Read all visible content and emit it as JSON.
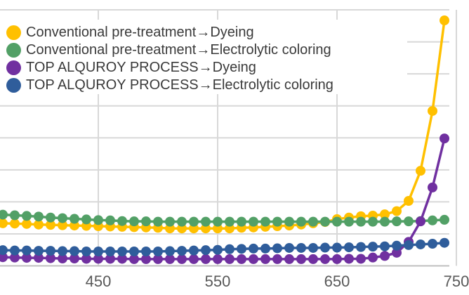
{
  "chart_data": {
    "type": "line",
    "title": "",
    "xlabel": "",
    "ylabel": "",
    "legend_position": "top-left",
    "grid": true,
    "x": [
      370,
      380,
      390,
      400,
      410,
      420,
      430,
      440,
      450,
      460,
      470,
      480,
      490,
      500,
      510,
      520,
      530,
      540,
      550,
      560,
      570,
      580,
      590,
      600,
      610,
      620,
      630,
      640,
      650,
      660,
      670,
      680,
      690,
      700,
      710,
      720,
      730,
      740
    ],
    "x_ticks": {
      "labels": [
        "450",
        "550",
        "650",
        "750"
      ],
      "values": [
        450,
        550,
        650,
        750
      ]
    },
    "y_axis": {
      "visible_tick_labels": [],
      "gridline_rows_visible": 8
    },
    "series": [
      {
        "name": "Conventional pre-treatment→Dyeing",
        "color": "#FFC000",
        "values_gridline_units": [
          1.33,
          1.32,
          1.31,
          1.29,
          1.28,
          1.27,
          1.26,
          1.25,
          1.24,
          1.23,
          1.22,
          1.21,
          1.2,
          1.19,
          1.17,
          1.17,
          1.17,
          1.17,
          1.17,
          1.17,
          1.19,
          1.2,
          1.22,
          1.24,
          1.26,
          1.29,
          1.33,
          1.37,
          1.46,
          1.51,
          1.55,
          1.57,
          1.61,
          1.71,
          2.03,
          2.97,
          4.84,
          7.67
        ]
      },
      {
        "name": "Conventional pre-treatment→Electrolytic coloring",
        "color": "#52A066",
        "values_gridline_units": [
          1.6,
          1.58,
          1.56,
          1.54,
          1.51,
          1.49,
          1.47,
          1.45,
          1.43,
          1.42,
          1.4,
          1.39,
          1.39,
          1.38,
          1.38,
          1.38,
          1.38,
          1.38,
          1.38,
          1.38,
          1.38,
          1.38,
          1.38,
          1.38,
          1.38,
          1.38,
          1.38,
          1.38,
          1.38,
          1.38,
          1.38,
          1.38,
          1.38,
          1.39,
          1.39,
          1.4,
          1.42,
          1.44
        ]
      },
      {
        "name": "TOP ALQUROY PROCESS→Dyeing",
        "color": "#7030A0",
        "values_gridline_units": [
          0.27,
          0.26,
          0.25,
          0.25,
          0.24,
          0.23,
          0.23,
          0.22,
          0.22,
          0.22,
          0.22,
          0.21,
          0.21,
          0.21,
          0.21,
          0.21,
          0.21,
          0.21,
          0.21,
          0.21,
          0.21,
          0.21,
          0.21,
          0.21,
          0.21,
          0.21,
          0.21,
          0.21,
          0.21,
          0.22,
          0.22,
          0.26,
          0.31,
          0.41,
          0.75,
          1.39,
          2.45,
          3.98
        ]
      },
      {
        "name": "TOP ALQUROY PROCESS→Electrolytic coloring",
        "color": "#2F5D9B",
        "values_gridline_units": [
          0.49,
          0.48,
          0.48,
          0.47,
          0.47,
          0.46,
          0.46,
          0.45,
          0.45,
          0.45,
          0.45,
          0.45,
          0.45,
          0.45,
          0.46,
          0.47,
          0.48,
          0.49,
          0.5,
          0.52,
          0.53,
          0.54,
          0.54,
          0.55,
          0.56,
          0.56,
          0.56,
          0.57,
          0.57,
          0.58,
          0.59,
          0.6,
          0.61,
          0.63,
          0.65,
          0.67,
          0.69,
          0.72
        ]
      }
    ],
    "colors": {
      "gridline": "#D8D8D8",
      "axis_line": "#BFBFBF",
      "tick_label": "#595959",
      "legend_text": "#3A3A3A",
      "background": "#FFFFFF"
    }
  }
}
